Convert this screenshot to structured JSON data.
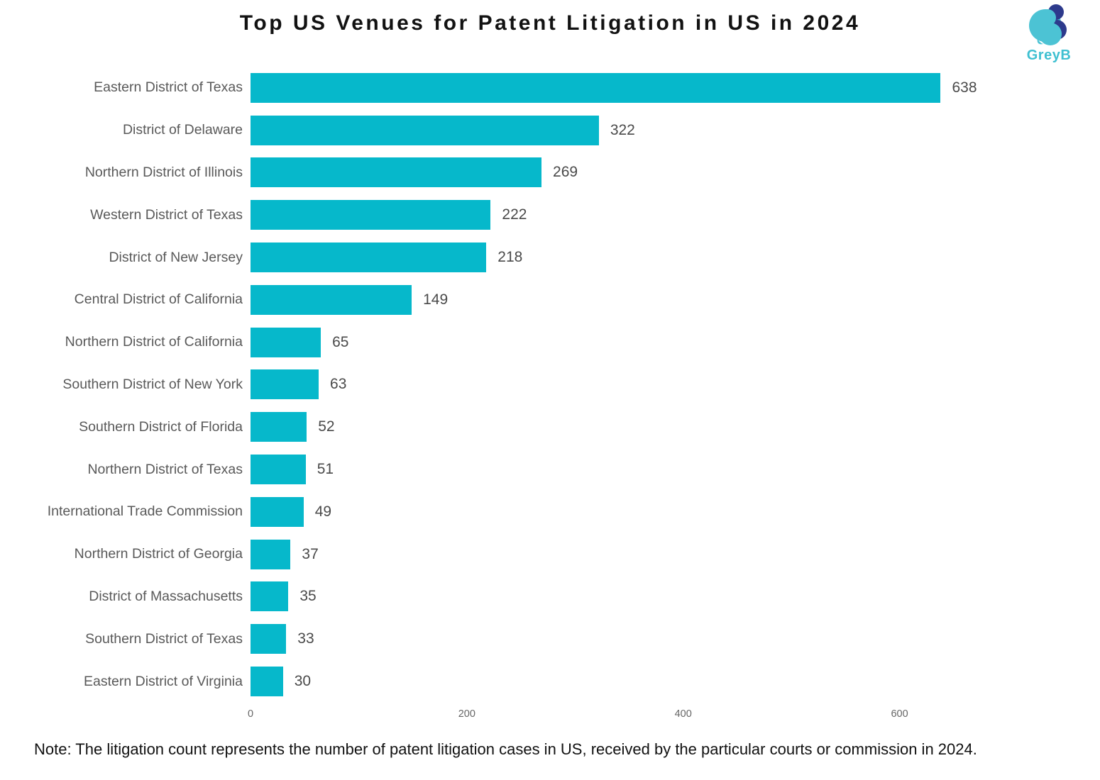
{
  "header": {
    "title": "Top US Venues for Patent Litigation in US in 2024",
    "logo_text": "GreyB"
  },
  "chart_data": {
    "type": "bar",
    "orientation": "horizontal",
    "title": "Top US Venues for Patent Litigation in US in 2024",
    "categories": [
      "Eastern District of Texas",
      "District of Delaware",
      "Northern District of Illinois",
      "Western District of Texas",
      "District of New Jersey",
      "Central District of California",
      "Northern District of California",
      "Southern District of New York",
      "Southern District of Florida",
      "Northern District of Texas",
      "International Trade Commission",
      "Northern District of Georgia",
      "District of Massachusetts",
      "Southern District of Texas",
      "Eastern District of Virginia"
    ],
    "values": [
      638,
      322,
      269,
      222,
      218,
      149,
      65,
      63,
      52,
      51,
      49,
      37,
      35,
      33,
      30
    ],
    "xlabel": "",
    "ylabel": "",
    "xlim": [
      0,
      700
    ],
    "x_ticks": [
      0,
      200,
      400,
      600
    ],
    "grid": false,
    "legend": false,
    "value_labels": true
  },
  "note": "Note: The litigation count represents the number of patent litigation cases in US, received by the particular courts or commission in 2024.",
  "colors": {
    "bar": "#06b8cb",
    "logo_teal": "#4cc3d4",
    "logo_navy": "#2d3a8c",
    "category_label": "#595959",
    "value_label": "#4a4a4a",
    "tick_label": "#666666"
  }
}
